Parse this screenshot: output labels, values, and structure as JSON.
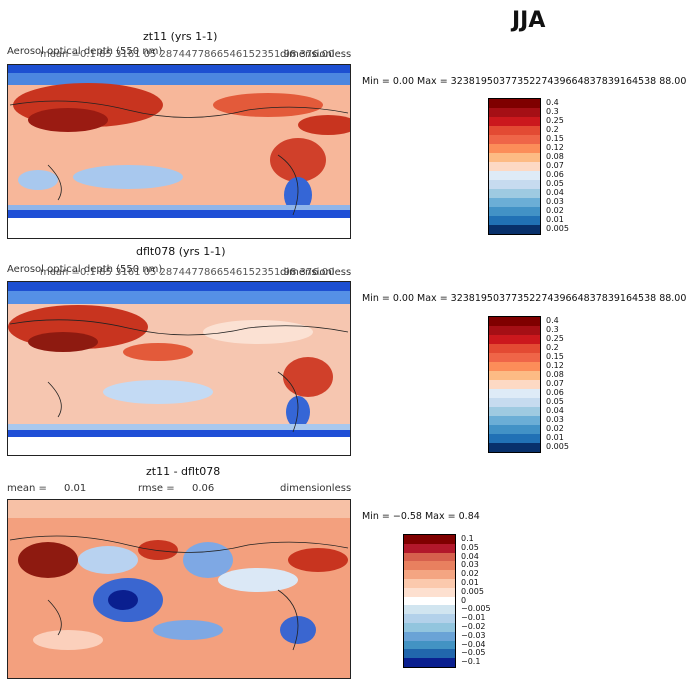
{
  "season": "JJA",
  "panels": [
    {
      "title": "zt11 (yrs 1-1)",
      "variable": "Aerosol optical depth (550 nm)",
      "mean_label": "mean =",
      "mean_value": "0.1 85 3161 05 2874477866546152351 98 376.00",
      "units": "dimensionless",
      "minmax": "Min =    0.00 Max = 3238195037735227439664837839164538 88.00",
      "legend": [
        "0.4",
        "0.3",
        "0.25",
        "0.2",
        "0.15",
        "0.12",
        "0.08",
        "0.07",
        "0.06",
        "0.05",
        "0.04",
        "0.03",
        "0.02",
        "0.01",
        "0.005"
      ]
    },
    {
      "title": "dflt078 (yrs 1-1)",
      "variable": "Aerosol optical depth (550 nm)",
      "mean_label": "mean =",
      "mean_value": "0.1 85 3161 05 2874477866546152351 98 376.00",
      "units": "dimensionless",
      "minmax": "Min =    0.00 Max = 3238195037735227439664837839164538 88.00",
      "legend": [
        "0.4",
        "0.3",
        "0.25",
        "0.2",
        "0.15",
        "0.12",
        "0.08",
        "0.07",
        "0.06",
        "0.05",
        "0.04",
        "0.03",
        "0.02",
        "0.01",
        "0.005"
      ]
    },
    {
      "title": "zt11 - dflt078",
      "mean_label": "mean =",
      "mean_value": "0.01",
      "rmse_label": "rmse =",
      "rmse_value": "0.06",
      "units": "dimensionless",
      "minmax": "Min =   −0.58  Max =    0.84",
      "legend": [
        "0.1",
        "0.05",
        "0.04",
        "0.03",
        "0.02",
        "0.01",
        "0.005",
        "0",
        "−0.005",
        "−0.01",
        "−0.02",
        "−0.03",
        "−0.04",
        "−0.05",
        "−0.1"
      ]
    }
  ],
  "colors": {
    "abs": [
      "#7f0000",
      "#a50f15",
      "#cb181d",
      "#e34a33",
      "#ef6548",
      "#fc8d59",
      "#fdbb84",
      "#fdd9c4",
      "#deebf7",
      "#c6dbef",
      "#9ecae1",
      "#6baed6",
      "#4292c6",
      "#2171b5",
      "#08306b"
    ],
    "diff": [
      "#7f0000",
      "#b2182b",
      "#d6604d",
      "#e8805f",
      "#f4a582",
      "#fbc9ad",
      "#fde0d0",
      "#ffffff",
      "#d1e5f0",
      "#b3d1ea",
      "#92c5de",
      "#6aa3d6",
      "#4393c3",
      "#2166ac",
      "#0a1f8f"
    ]
  }
}
